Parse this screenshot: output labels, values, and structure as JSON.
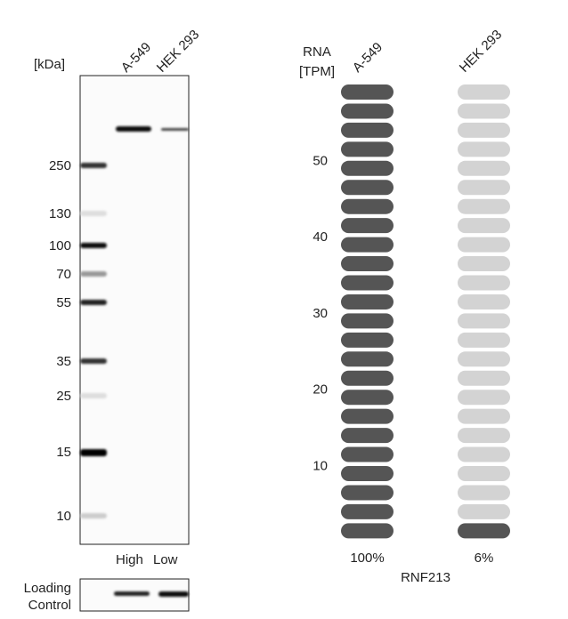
{
  "western_blot": {
    "unit_label": "[kDa]",
    "lanes": [
      "A-549",
      "HEK 293"
    ],
    "markers": [
      250,
      130,
      100,
      70,
      55,
      35,
      25,
      15,
      10
    ],
    "lane_levels": [
      "High",
      "Low"
    ],
    "loading_control": [
      "Loading",
      "Control"
    ]
  },
  "rna": {
    "axis_label": [
      "RNA",
      "[TPM]"
    ],
    "ticks": [
      10,
      20,
      30,
      40,
      50
    ],
    "samples": [
      "A-549",
      "HEK 293"
    ],
    "values": [
      100,
      6
    ],
    "value_labels": [
      "100%",
      "6%"
    ],
    "gene": "RNF213"
  }
}
